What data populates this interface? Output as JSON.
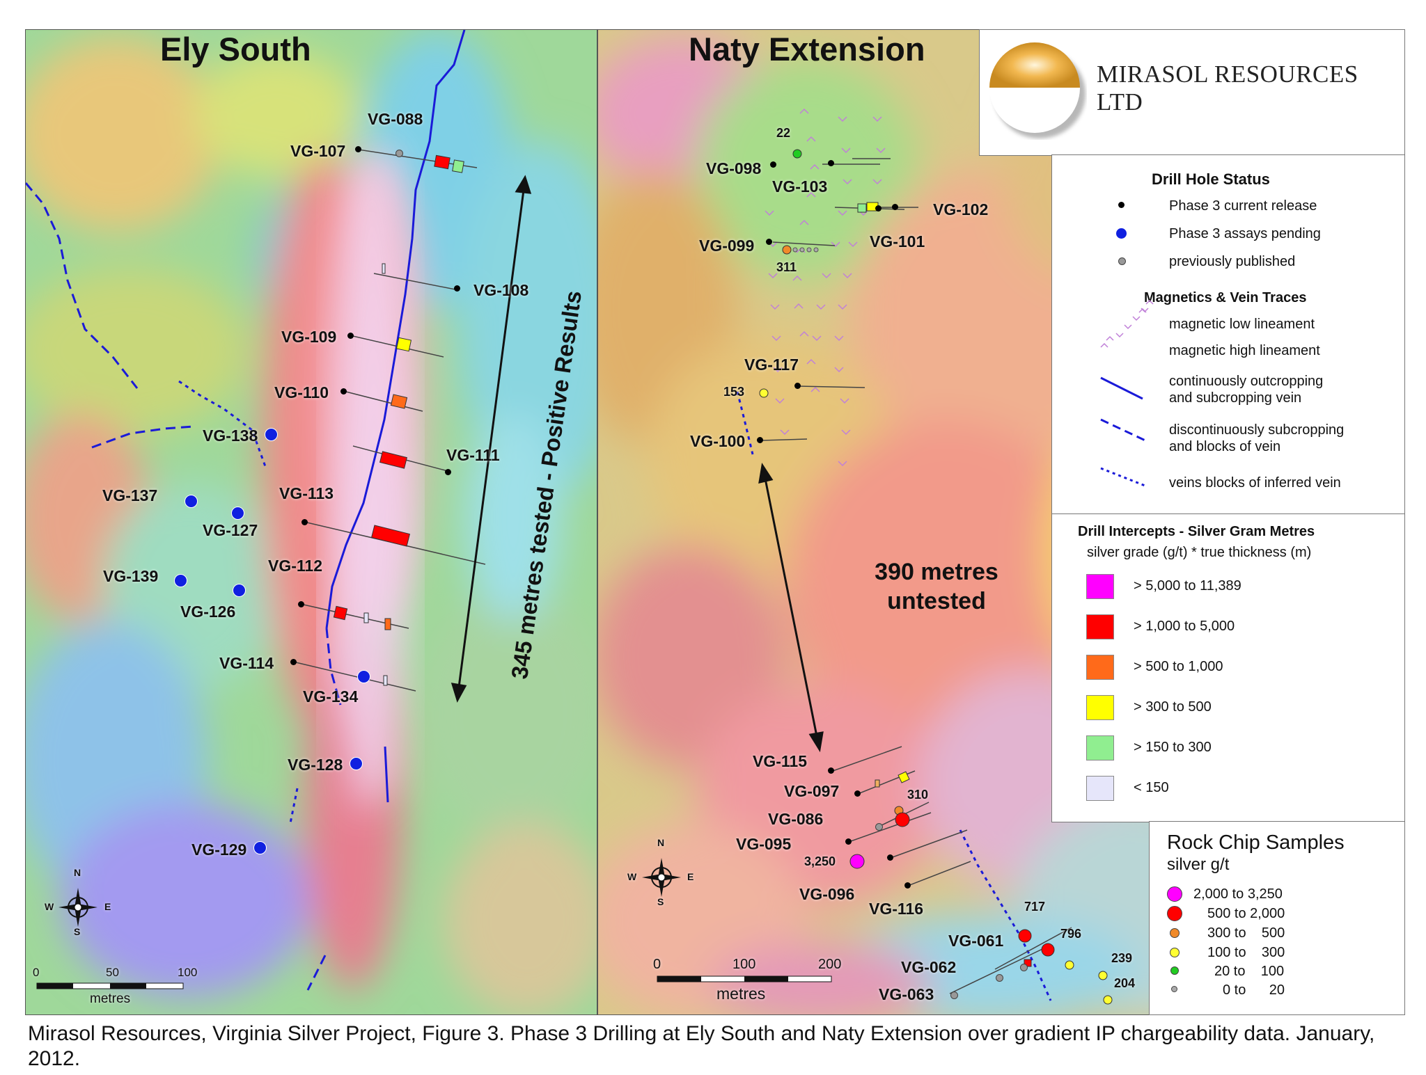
{
  "titles": {
    "west": "Ely South",
    "east": "Naty Extension"
  },
  "company": {
    "name": "MIRASOL RESOURCES LTD"
  },
  "west_holes": [
    {
      "id": "VG-088"
    },
    {
      "id": "VG-107"
    },
    {
      "id": "VG-108"
    },
    {
      "id": "VG-109"
    },
    {
      "id": "VG-110"
    },
    {
      "id": "VG-111"
    },
    {
      "id": "VG-113"
    },
    {
      "id": "VG-112"
    },
    {
      "id": "VG-114"
    },
    {
      "id": "VG-134"
    },
    {
      "id": "VG-138"
    },
    {
      "id": "VG-137"
    },
    {
      "id": "VG-127"
    },
    {
      "id": "VG-139"
    },
    {
      "id": "VG-126"
    },
    {
      "id": "VG-128"
    },
    {
      "id": "VG-129"
    }
  ],
  "east_holes": [
    {
      "id": "VG-098"
    },
    {
      "id": "VG-103"
    },
    {
      "id": "VG-102"
    },
    {
      "id": "VG-101"
    },
    {
      "id": "VG-099"
    },
    {
      "id": "VG-117"
    },
    {
      "id": "VG-100"
    },
    {
      "id": "VG-115"
    },
    {
      "id": "VG-097"
    },
    {
      "id": "VG-086"
    },
    {
      "id": "VG-095"
    },
    {
      "id": "VG-096"
    },
    {
      "id": "VG-116"
    },
    {
      "id": "VG-061"
    },
    {
      "id": "VG-062"
    },
    {
      "id": "VG-063"
    }
  ],
  "rock_values": [
    "22",
    "311",
    "153",
    "310",
    "3,250",
    "717",
    "796",
    "239",
    "204"
  ],
  "annotations": {
    "tested": "345 metres tested - Positive Results",
    "untested_1": "390 metres",
    "untested_2": "untested"
  },
  "compass": {
    "n": "N",
    "s": "S",
    "e": "E",
    "w": "W"
  },
  "scale_west": {
    "ticks": [
      "0",
      "50",
      "100"
    ],
    "unit": "metres"
  },
  "scale_east": {
    "ticks": [
      "0",
      "100",
      "200"
    ],
    "unit": "metres"
  },
  "legend_status": {
    "title": "Drill Hole Status",
    "items": [
      "Phase 3 current release",
      "Phase 3 assays pending",
      "previously published"
    ],
    "colors": [
      "#000000",
      "#1020e0",
      "#999999"
    ]
  },
  "legend_traces": {
    "title": "Magnetics & Vein Traces",
    "items": [
      "magnetic low lineament",
      "magnetic high lineament",
      "continuously outcropping",
      "and subcropping vein",
      "discontinuously subcropping",
      "and blocks of vein",
      "veins blocks of inferred vein"
    ]
  },
  "legend_intercepts": {
    "title": "Drill Intercepts - Silver Gram Metres",
    "subtitle": "silver grade (g/t) * true thickness (m)",
    "items": [
      "> 5,000 to 11,389",
      "> 1,000 to 5,000",
      "> 500 to 1,000",
      "> 300 to 500",
      "> 150 to 300",
      "< 150"
    ],
    "colors": [
      "#ff00ff",
      "#ff0000",
      "#ff6a1a",
      "#ffff00",
      "#90ee90",
      "#e6e6fa"
    ]
  },
  "legend_rock": {
    "title": "Rock Chip Samples",
    "subtitle": "silver g/t",
    "items": [
      "2,000 to 3,250",
      "500 to 2,000",
      "300 to    500",
      "100 to    300",
      "20 to    100",
      "0 to      20"
    ],
    "colors": [
      "#ff00ff",
      "#ff0000",
      "#f08a2a",
      "#ffff33",
      "#22cc22",
      "#aaaaaa"
    ]
  },
  "caption": "Mirasol Resources, Virginia Silver Project, Figure 3. Phase 3 Drilling at Ely South and Naty Extension over gradient IP chargeability data. January, 2012."
}
